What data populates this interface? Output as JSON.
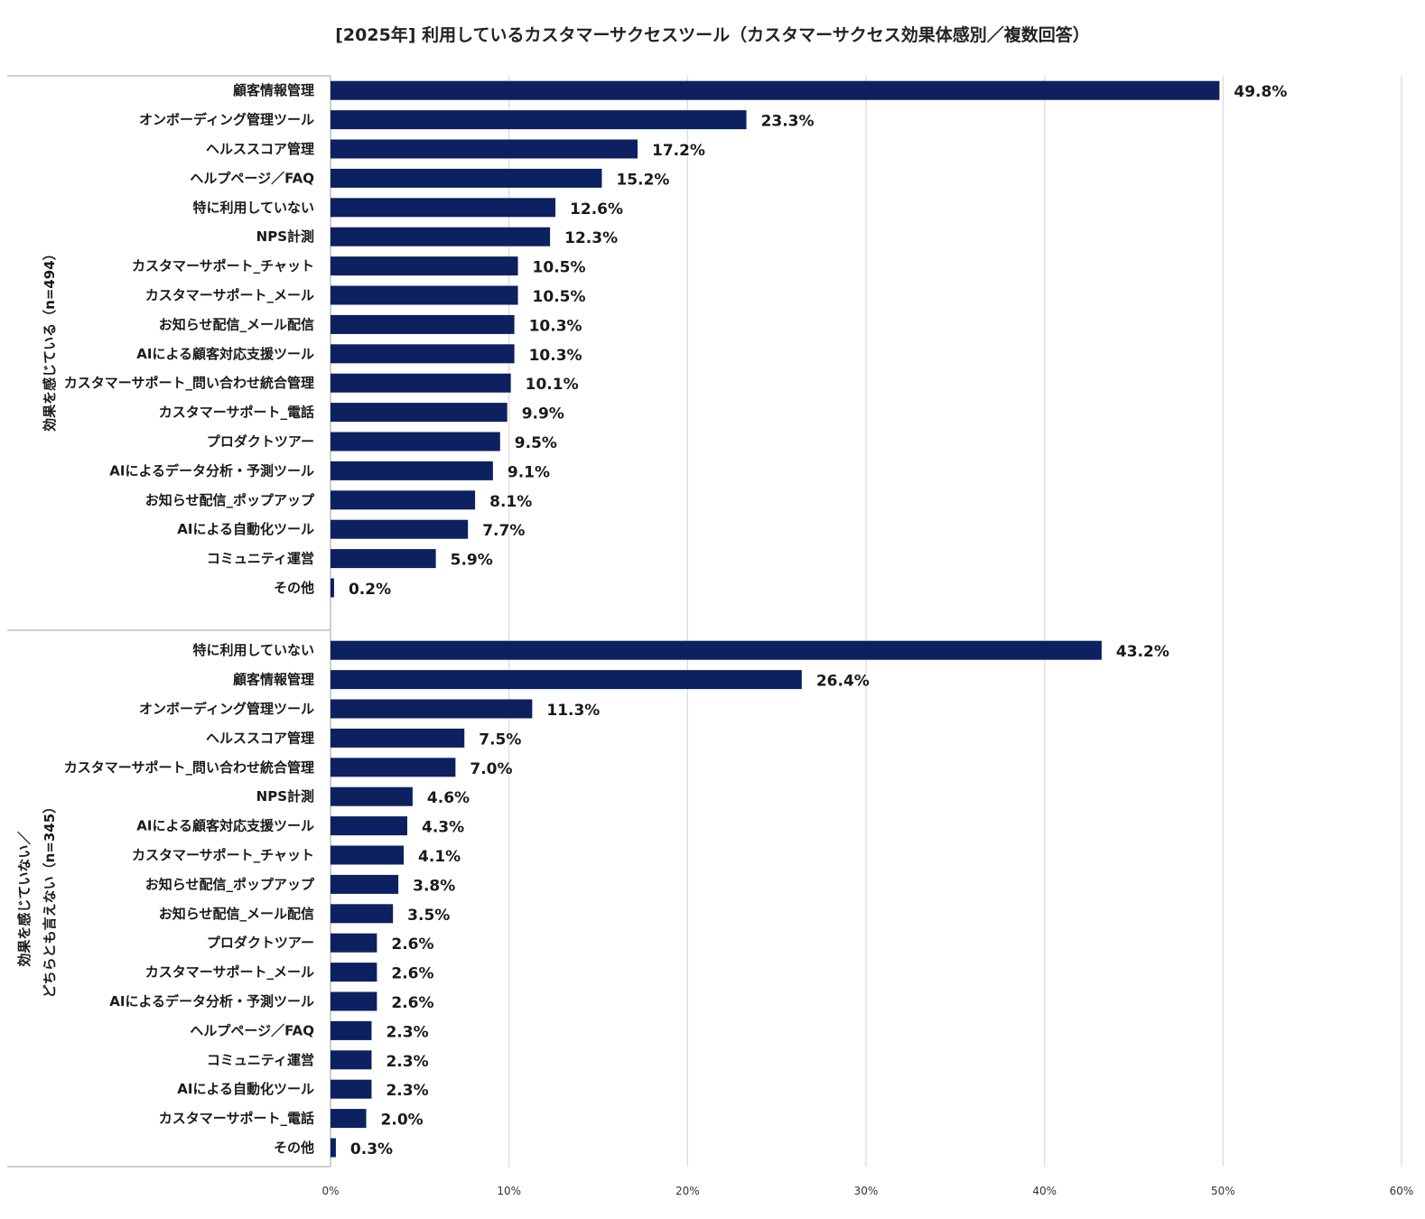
{
  "chart_data": {
    "type": "bar",
    "orientation": "horizontal",
    "title": "[2025年] 利用しているカスタマーサクセスツール（カスタマーサクセス効果体感別／複数回答）",
    "xlim": [
      0,
      60
    ],
    "x_ticks": [
      "0%",
      "10%",
      "20%",
      "30%",
      "40%",
      "50%",
      "60%"
    ],
    "value_suffix": "%",
    "grid": "vertical",
    "bar_color": "#0d2060",
    "groups": [
      {
        "label_lines": [
          "効果を感じている（n=494）"
        ],
        "items": [
          {
            "label": "顧客情報管理",
            "value": 49.8,
            "value_label": "49.8%"
          },
          {
            "label": "オンボーディング管理ツール",
            "value": 23.3,
            "value_label": "23.3%"
          },
          {
            "label": "ヘルススコア管理",
            "value": 17.2,
            "value_label": "17.2%"
          },
          {
            "label": "ヘルプページ／FAQ",
            "value": 15.2,
            "value_label": "15.2%"
          },
          {
            "label": "特に利用していない",
            "value": 12.6,
            "value_label": "12.6%"
          },
          {
            "label": "NPS計測",
            "value": 12.3,
            "value_label": "12.3%"
          },
          {
            "label": "カスタマーサポート_チャット",
            "value": 10.5,
            "value_label": "10.5%"
          },
          {
            "label": "カスタマーサポート_メール",
            "value": 10.5,
            "value_label": "10.5%"
          },
          {
            "label": "お知らせ配信_メール配信",
            "value": 10.3,
            "value_label": "10.3%"
          },
          {
            "label": "AIによる顧客対応支援ツール",
            "value": 10.3,
            "value_label": "10.3%"
          },
          {
            "label": "カスタマーサポート_問い合わせ統合管理",
            "value": 10.1,
            "value_label": "10.1%"
          },
          {
            "label": "カスタマーサポート_電話",
            "value": 9.9,
            "value_label": "9.9%"
          },
          {
            "label": "プロダクトツアー",
            "value": 9.5,
            "value_label": "9.5%"
          },
          {
            "label": "AIによるデータ分析・予測ツール",
            "value": 9.1,
            "value_label": "9.1%"
          },
          {
            "label": "お知らせ配信_ポップアップ",
            "value": 8.1,
            "value_label": "8.1%"
          },
          {
            "label": "AIによる自動化ツール",
            "value": 7.7,
            "value_label": "7.7%"
          },
          {
            "label": "コミュニティ運営",
            "value": 5.9,
            "value_label": "5.9%"
          },
          {
            "label": "その他",
            "value": 0.2,
            "value_label": "0.2%"
          }
        ]
      },
      {
        "label_lines": [
          "効果を感じていない／",
          "どちらとも言えない（n=345）"
        ],
        "items": [
          {
            "label": "特に利用していない",
            "value": 43.2,
            "value_label": "43.2%"
          },
          {
            "label": "顧客情報管理",
            "value": 26.4,
            "value_label": "26.4%"
          },
          {
            "label": "オンボーディング管理ツール",
            "value": 11.3,
            "value_label": "11.3%"
          },
          {
            "label": "ヘルススコア管理",
            "value": 7.5,
            "value_label": "7.5%"
          },
          {
            "label": "カスタマーサポート_問い合わせ統合管理",
            "value": 7.0,
            "value_label": "7.0%"
          },
          {
            "label": "NPS計測",
            "value": 4.6,
            "value_label": "4.6%"
          },
          {
            "label": "AIによる顧客対応支援ツール",
            "value": 4.3,
            "value_label": "4.3%"
          },
          {
            "label": "カスタマーサポート_チャット",
            "value": 4.1,
            "value_label": "4.1%"
          },
          {
            "label": "お知らせ配信_ポップアップ",
            "value": 3.8,
            "value_label": "3.8%"
          },
          {
            "label": "お知らせ配信_メール配信",
            "value": 3.5,
            "value_label": "3.5%"
          },
          {
            "label": "プロダクトツアー",
            "value": 2.6,
            "value_label": "2.6%"
          },
          {
            "label": "カスタマーサポート_メール",
            "value": 2.6,
            "value_label": "2.6%"
          },
          {
            "label": "AIによるデータ分析・予測ツール",
            "value": 2.6,
            "value_label": "2.6%"
          },
          {
            "label": "ヘルプページ／FAQ",
            "value": 2.3,
            "value_label": "2.3%"
          },
          {
            "label": "コミュニティ運営",
            "value": 2.3,
            "value_label": "2.3%"
          },
          {
            "label": "AIによる自動化ツール",
            "value": 2.3,
            "value_label": "2.3%"
          },
          {
            "label": "カスタマーサポート_電話",
            "value": 2.0,
            "value_label": "2.0%"
          },
          {
            "label": "その他",
            "value": 0.3,
            "value_label": "0.3%"
          }
        ]
      }
    ]
  }
}
